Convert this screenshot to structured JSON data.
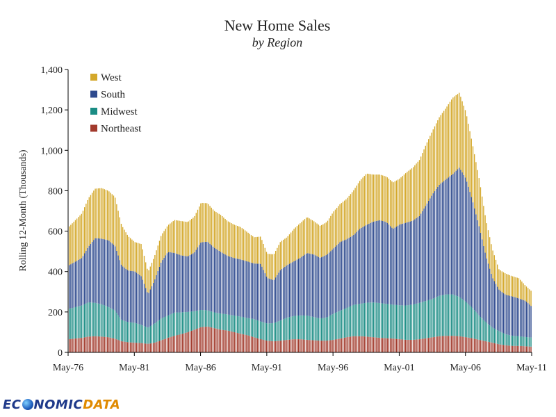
{
  "chart_data": {
    "type": "bar",
    "stacked": true,
    "title": "New Home Sales",
    "subtitle": "by Region",
    "xlabel": "",
    "ylabel": "Rolling 12-Month (Thousands)",
    "ylim": [
      0,
      1400
    ],
    "yticks": [
      0,
      200,
      400,
      600,
      800,
      1000,
      1200,
      1400
    ],
    "ytick_labels": [
      "0",
      "200",
      "400",
      "600",
      "800",
      "1,000",
      "1,200",
      "1,400"
    ],
    "xtick_labels": [
      "May-76",
      "May-81",
      "May-86",
      "May-91",
      "May-96",
      "May-01",
      "May-06",
      "May-11"
    ],
    "x_start_year": 1976,
    "x_end_year": 2011,
    "legend_position": "top-left",
    "anchor_years": [
      1976,
      1977,
      1977.5,
      1978,
      1978.5,
      1979,
      1979.5,
      1980,
      1980.5,
      1981,
      1981.5,
      1982,
      1982.5,
      1983,
      1983.5,
      1984,
      1984.5,
      1985,
      1985.5,
      1986,
      1986.5,
      1987,
      1987.5,
      1988,
      1988.5,
      1989,
      1989.5,
      1990,
      1990.5,
      1991,
      1991.5,
      1992,
      1992.5,
      1993,
      1993.5,
      1994,
      1994.5,
      1995,
      1995.5,
      1996,
      1996.5,
      1997,
      1997.5,
      1998,
      1998.5,
      1999,
      1999.5,
      2000,
      2000.5,
      2001,
      2001.5,
      2002,
      2002.5,
      2003,
      2003.5,
      2004,
      2004.5,
      2005,
      2005.5,
      2006,
      2006.5,
      2007,
      2007.5,
      2008,
      2008.5,
      2009,
      2009.5,
      2010,
      2010.5,
      2011
    ],
    "series": [
      {
        "name": "Northeast",
        "color": "#a23a2c",
        "values": [
          65,
          72,
          78,
          80,
          78,
          75,
          68,
          55,
          50,
          48,
          46,
          42,
          48,
          60,
          72,
          82,
          90,
          100,
          112,
          125,
          128,
          120,
          112,
          108,
          100,
          92,
          85,
          75,
          65,
          58,
          55,
          58,
          62,
          65,
          65,
          62,
          60,
          58,
          58,
          62,
          68,
          75,
          80,
          80,
          78,
          75,
          72,
          70,
          68,
          65,
          62,
          62,
          65,
          70,
          75,
          80,
          82,
          82,
          80,
          75,
          70,
          62,
          55,
          48,
          40,
          35,
          32,
          32,
          30,
          28
        ]
      },
      {
        "name": "Midwest",
        "color": "#1a8c84",
        "values": [
          150,
          160,
          170,
          165,
          160,
          150,
          140,
          105,
          100,
          98,
          90,
          80,
          95,
          108,
          110,
          115,
          108,
          100,
          92,
          85,
          80,
          78,
          80,
          80,
          82,
          85,
          85,
          90,
          88,
          85,
          90,
          100,
          110,
          115,
          118,
          120,
          115,
          110,
          115,
          130,
          138,
          145,
          155,
          160,
          168,
          172,
          172,
          170,
          168,
          168,
          170,
          175,
          180,
          185,
          190,
          200,
          205,
          205,
          195,
          175,
          150,
          120,
          95,
          75,
          65,
          55,
          50,
          48,
          46,
          45
        ]
      },
      {
        "name": "South",
        "color": "#2e4a8e",
        "values": [
          215,
          235,
          275,
          320,
          325,
          330,
          320,
          270,
          255,
          255,
          240,
          165,
          215,
          280,
          315,
          295,
          282,
          275,
          290,
          335,
          340,
          320,
          305,
          290,
          285,
          283,
          280,
          275,
          285,
          225,
          212,
          250,
          260,
          270,
          285,
          310,
          310,
          300,
          310,
          322,
          340,
          340,
          345,
          372,
          385,
          400,
          410,
          405,
          375,
          400,
          410,
          415,
          430,
          475,
          520,
          550,
          570,
          595,
          640,
          610,
          530,
          440,
          330,
          247,
          205,
          195,
          195,
          187,
          179,
          152
        ]
      },
      {
        "name": "West",
        "color": "#d4a82a",
        "values": [
          190,
          220,
          240,
          245,
          250,
          245,
          242,
          200,
          170,
          145,
          160,
          110,
          120,
          132,
          132,
          163,
          170,
          170,
          178,
          195,
          190,
          182,
          183,
          172,
          165,
          160,
          145,
          130,
          135,
          120,
          128,
          140,
          138,
          160,
          172,
          178,
          165,
          158,
          162,
          182,
          188,
          200,
          220,
          238,
          254,
          233,
          226,
          225,
          230,
          227,
          248,
          263,
          278,
          300,
          315,
          335,
          353,
          378,
          370,
          330,
          280,
          238,
          180,
          140,
          100,
          105,
          100,
          100,
          75,
          75
        ]
      }
    ]
  },
  "logo": {
    "prefix": "EC",
    "suffix": "NOMIC",
    "data": "DATA"
  }
}
